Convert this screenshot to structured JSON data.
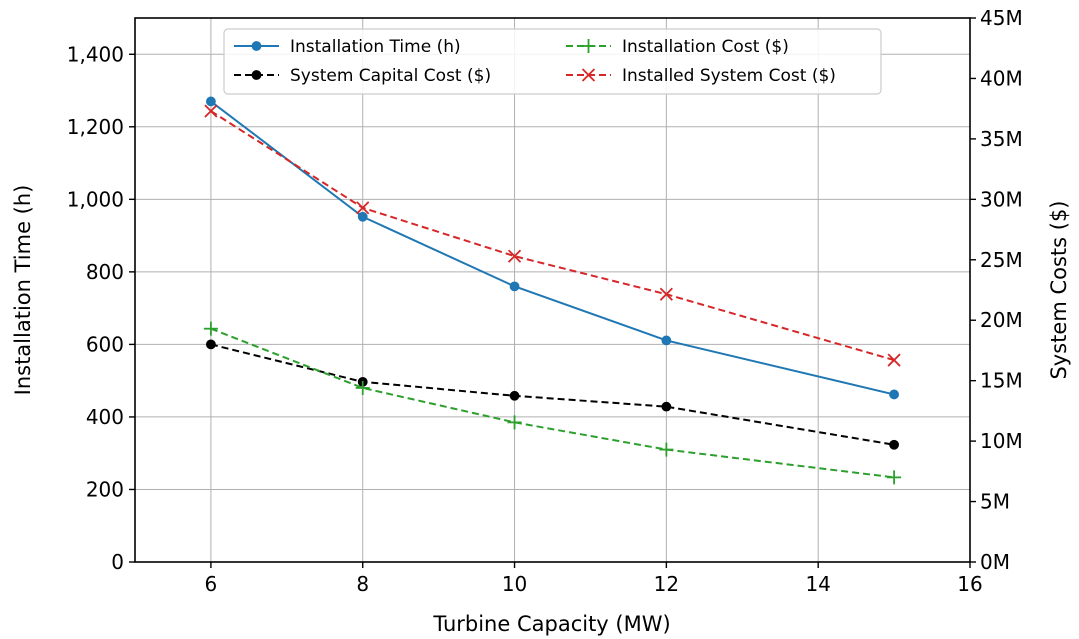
{
  "chart_data": {
    "type": "line",
    "xlabel": "Turbine Capacity (MW)",
    "ylabel": "Installation Time (h)",
    "y2label": "System Costs ($)",
    "xlim": [
      5,
      16
    ],
    "ylim": [
      0,
      1500
    ],
    "y2lim": [
      0,
      45000000
    ],
    "x_ticks": [
      "6",
      "8",
      "10",
      "12",
      "14",
      "16"
    ],
    "y_ticks": [
      "0",
      "200",
      "400",
      "600",
      "800",
      "1,000",
      "1,200",
      "1,400"
    ],
    "y2_ticks": [
      "0M",
      "5M",
      "10M",
      "15M",
      "20M",
      "25M",
      "30M",
      "35M",
      "40M",
      "45M"
    ],
    "grid": true,
    "legend_position": "top-center",
    "x": [
      6,
      8,
      10,
      12,
      15
    ],
    "series": [
      {
        "name": "Installation Time (h)",
        "axis": "left",
        "color": "#1f77b4",
        "style": "solid",
        "marker": "circle",
        "values": [
          1270,
          952,
          760,
          611,
          462
        ]
      },
      {
        "name": "System Capital Cost ($)",
        "axis": "right",
        "color": "#000000",
        "style": "dashed",
        "marker": "circle",
        "values": [
          18000000,
          14900000,
          13750000,
          12850000,
          9700000
        ]
      },
      {
        "name": "Installation Cost ($)",
        "axis": "right",
        "color": "#2ca02c",
        "style": "dashed",
        "marker": "plus",
        "values": [
          19300000,
          14400000,
          11550000,
          9300000,
          7000000
        ]
      },
      {
        "name": "Installed System Cost ($)",
        "axis": "right",
        "color": "#d62728",
        "style": "dashed",
        "marker": "x",
        "values": [
          37300000,
          29300000,
          25300000,
          22150000,
          16700000
        ]
      }
    ]
  }
}
